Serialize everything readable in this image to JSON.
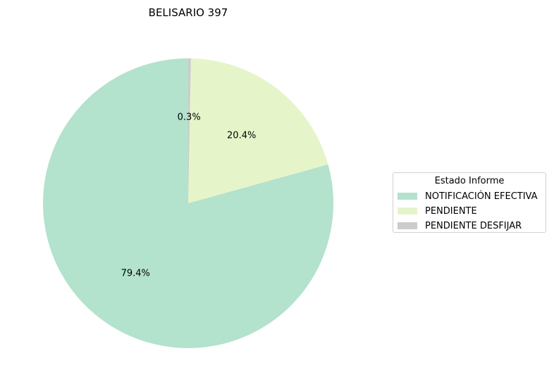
{
  "chart_data": {
    "type": "pie",
    "title": "BELISARIO 397",
    "legend_title": "Estado Informe",
    "legend_position": "center-right",
    "start_angle_deg": 90,
    "direction": "counterclockwise",
    "slices": [
      {
        "label": "NOTIFICACIÓN EFECTIVA",
        "value": 79.4,
        "pct_label": "79.4%",
        "color": "#b3e2cd"
      },
      {
        "label": "PENDIENTE",
        "value": 20.4,
        "pct_label": "20.4%",
        "color": "#e6f5c9"
      },
      {
        "label": "PENDIENTE DESFIJAR",
        "value": 0.3,
        "pct_label": "0.3%",
        "color": "#cccccc"
      }
    ]
  }
}
